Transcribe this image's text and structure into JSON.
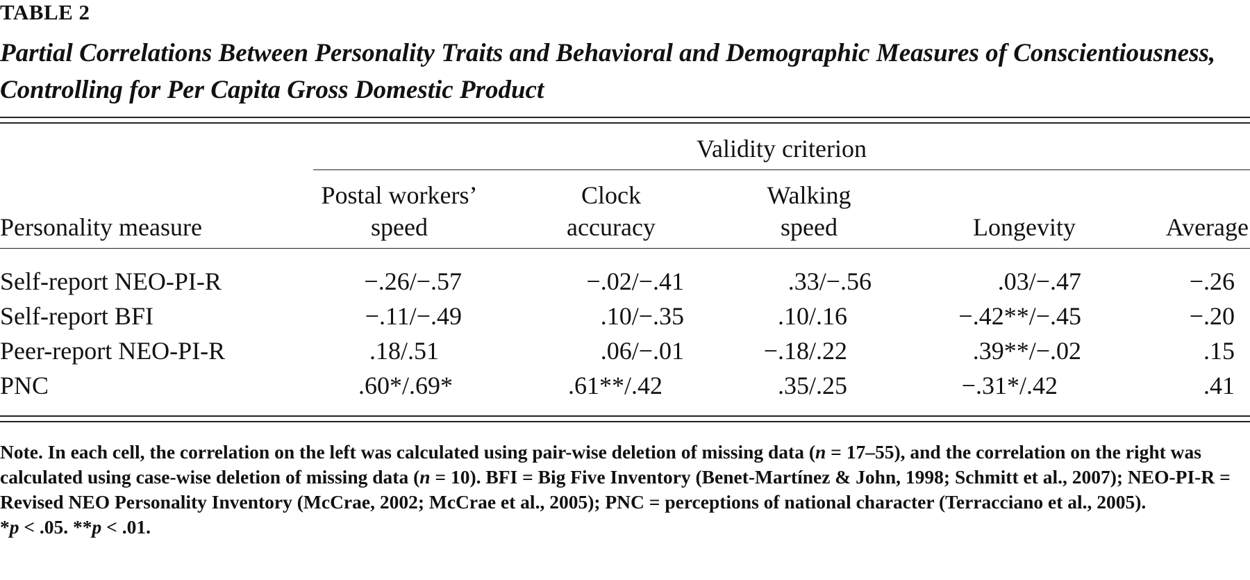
{
  "table_label": "TABLE 2",
  "caption": "Partial Correlations Between Personality Traits and Behavioral and Demographic Measures of Conscientiousness, Controlling for Per Capita Gross Domestic Product",
  "spanner": "Validity criterion",
  "stub_header": "Personality measure",
  "columns": [
    {
      "line1": "Postal workers’",
      "line2": "speed"
    },
    {
      "line1": "Clock",
      "line2": "accuracy"
    },
    {
      "line1": "Walking",
      "line2": "speed"
    },
    {
      "line1": "",
      "line2": "Longevity"
    },
    {
      "line1": "",
      "line2": "Average"
    }
  ],
  "rows": [
    {
      "measure": "Self-report NEO-PI-R",
      "cells": [
        "−.26/−.57",
        "−.02/−.41",
        ".33/−.56",
        ".03/−.47",
        "−.26"
      ]
    },
    {
      "measure": "Self-report BFI",
      "cells": [
        "−.11/−.49",
        ".10/−.35",
        ".10/.16",
        "−.42**/−.45",
        "−.20"
      ]
    },
    {
      "measure": "Peer-report NEO-PI-R",
      "cells": [
        ".18/.51",
        ".06/−.01",
        "−.18/.22",
        ".39**/−.02",
        ".15"
      ]
    },
    {
      "measure": "PNC",
      "cells": [
        ".60*/.69*",
        ".61**/.42",
        ".35/.25",
        "−.31*/.42",
        ".41"
      ]
    }
  ],
  "note": {
    "label": "Note.",
    "s1": " In each cell, the correlation on the left was calculated using pair-wise deletion of missing data (",
    "n_symbol": "n",
    "s2": " = 17–55), and the correlation on the right was calculated using case-wise deletion of missing data (",
    "s3": " = 10). BFI = Big Five Inventory (Benet-Martínez & John, 1998; Schmitt et al., 2007); NEO-PI-R = Revised NEO Personality Inventory (McCrae, 2002; McCrae et al., 2005); PNC = perceptions of national character (Terracciano et al., 2005).",
    "sig_star1": "*",
    "p_symbol": "p",
    "sig_text1": " < .05. ",
    "sig_star2": "**",
    "sig_text2": " < .01."
  }
}
